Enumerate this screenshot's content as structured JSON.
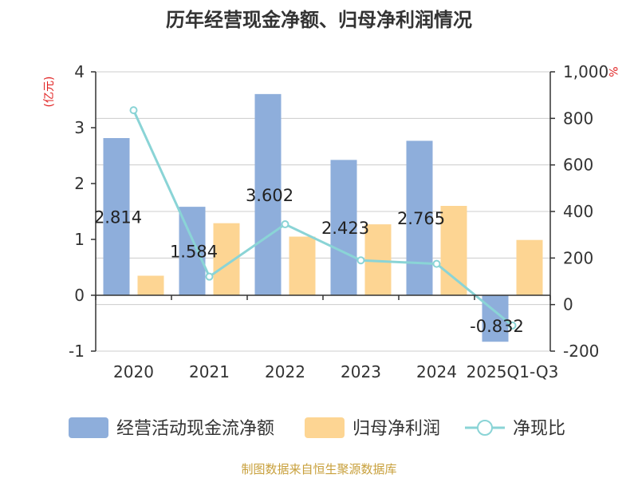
{
  "chart_data": {
    "type": "bar",
    "title": "历年经营现金净额、归母净利润情况",
    "categories": [
      "2020",
      "2021",
      "2022",
      "2023",
      "2024",
      "2025Q1-Q3"
    ],
    "left_axis": {
      "unit_label": "(亿元)",
      "ylim": [
        -1,
        4
      ],
      "ticks": [
        "4",
        "3",
        "2",
        "1",
        "0",
        "-1"
      ]
    },
    "right_axis": {
      "unit_label": "%",
      "ylim": [
        -200,
        1000
      ],
      "ticks": [
        "1,000",
        "800",
        "600",
        "400",
        "200",
        "0",
        "-200"
      ]
    },
    "grid": true,
    "legend_position": "bottom",
    "series": [
      {
        "name": "经营活动现金流净额",
        "type": "bar",
        "axis": "left",
        "color": "#8eaedb",
        "values": [
          2.814,
          1.584,
          3.602,
          2.423,
          2.765,
          -0.832
        ],
        "labels": [
          "2.814",
          "1.584",
          "3.602",
          "2.423",
          "2.765",
          "-0.832"
        ]
      },
      {
        "name": "归母净利润",
        "type": "bar",
        "axis": "left",
        "color": "#fdd593",
        "values": [
          0.35,
          1.29,
          1.05,
          1.27,
          1.6,
          0.99
        ]
      },
      {
        "name": "净现比",
        "type": "line",
        "axis": "right",
        "color": "#8ad4d6",
        "values": [
          835,
          120,
          345,
          190,
          175,
          -90
        ]
      }
    ]
  },
  "footer": {
    "source": "制图数据来自恒生聚源数据库"
  },
  "colors": {
    "axis_unit": "#e02020",
    "footer": "#c8a03c",
    "axis": "#333333",
    "grid": "#cccccc"
  }
}
